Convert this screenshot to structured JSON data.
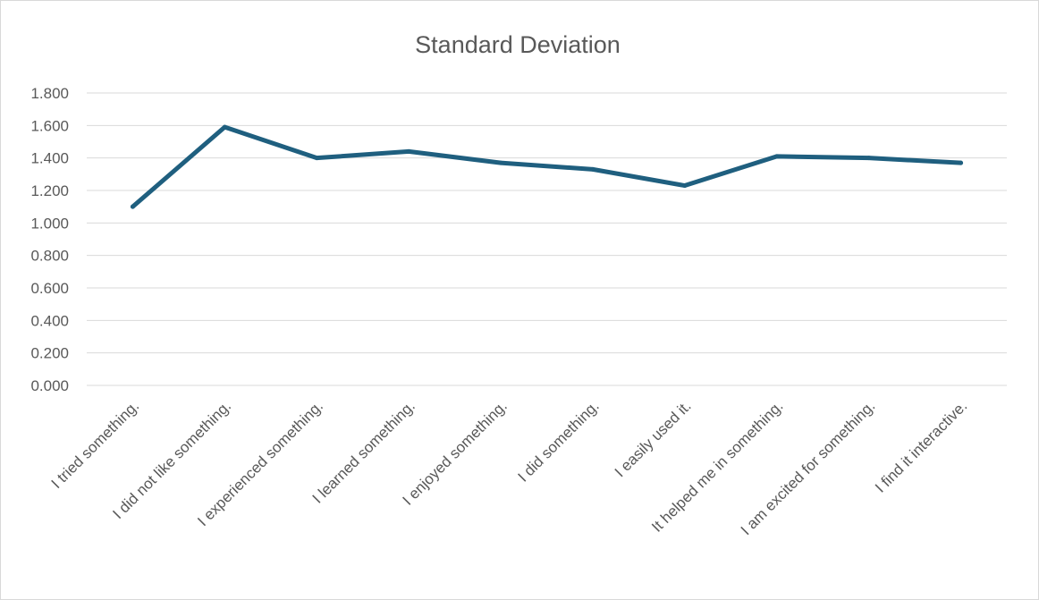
{
  "chart_data": {
    "type": "line",
    "title": "Standard Deviation",
    "categories": [
      "I tried something.",
      "I did not like something.",
      "I experienced something.",
      "I learned something.",
      "I enjoyed something.",
      "I did something.",
      "I easily used it.",
      "It helped me in something.",
      "I am excited for something.",
      "I find it interactive."
    ],
    "values": [
      1.1,
      1.59,
      1.4,
      1.44,
      1.37,
      1.33,
      1.23,
      1.41,
      1.4,
      1.37
    ],
    "ylim": [
      0,
      1.8
    ],
    "yticks": [
      "0.000",
      "0.200",
      "0.400",
      "0.600",
      "0.800",
      "1.000",
      "1.200",
      "1.400",
      "1.600",
      "1.800"
    ],
    "line_color": "#1f5f7f",
    "grid": true,
    "legend": "none"
  }
}
